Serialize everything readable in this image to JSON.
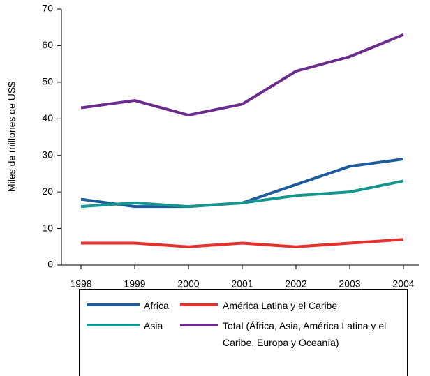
{
  "chart_data": {
    "type": "line",
    "y_label": "Miles de millones de US$",
    "categories": [
      "1998",
      "1999",
      "2000",
      "2001",
      "2002",
      "2003",
      "2004"
    ],
    "series": [
      {
        "name": "África",
        "color": "#1d5c9c",
        "values": [
          18,
          16,
          16,
          17,
          22,
          27,
          29
        ]
      },
      {
        "name": "Asia",
        "color": "#16968f",
        "values": [
          16,
          17,
          16,
          17,
          19,
          20,
          23
        ]
      },
      {
        "name": "América Latina y el Caribe",
        "color": "#e5302c",
        "values": [
          6,
          6,
          5,
          6,
          5,
          6,
          7
        ]
      },
      {
        "name": "Total (África, Asia, América Latina y el Caribe, Europa y Oceanía)",
        "color": "#6b2b8e",
        "values": [
          43,
          45,
          41,
          44,
          53,
          57,
          63
        ]
      }
    ],
    "ylim": [
      0,
      70
    ],
    "yticks": [
      0,
      10,
      20,
      30,
      40,
      50,
      60,
      70
    ],
    "grid": false
  }
}
